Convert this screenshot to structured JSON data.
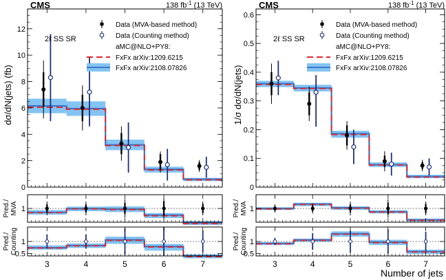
{
  "chart_data": [
    {
      "type": "step-with-errorbars",
      "experiment": "CMS",
      "lumi": "138 fb",
      "lumi_exp": "-1",
      "energy": "(13 TeV)",
      "region": "2ℓ SS SR",
      "ylabel": "dσ/dN(jets) (fb)",
      "ylim": [
        0,
        13.5
      ],
      "yticks": [
        "0",
        "2",
        "4",
        "6",
        "8",
        "10",
        "12"
      ],
      "ytick_values": [
        0,
        2,
        4,
        6,
        8,
        10,
        12
      ],
      "categories": [
        "3",
        "4",
        "5",
        "6",
        "7"
      ],
      "legend": {
        "mva": "Data (MVA-based method)",
        "counting": "Data (Counting method)",
        "generator": "aMC@NLO+PY8:",
        "fxfx1": "FxFx arXiv:1209.6215",
        "fxfx2": "FxFx arXiv:2108.07826"
      },
      "prediction_fxfx1": [
        6.05,
        5.9,
        3.15,
        1.3,
        0.55
      ],
      "prediction_fxfx2": [
        6.15,
        5.95,
        3.2,
        1.35,
        0.6
      ],
      "prediction_band": [
        [
          5.6,
          6.7
        ],
        [
          5.4,
          6.5
        ],
        [
          2.8,
          3.6
        ],
        [
          1.1,
          1.55
        ],
        [
          0.45,
          0.7
        ]
      ],
      "data_mva": {
        "values": [
          7.4,
          6.0,
          3.3,
          1.9,
          1.6
        ],
        "err_lo": [
          1.3,
          1.0,
          0.8,
          0.6,
          0.3
        ],
        "err_hi": [
          1.3,
          1.0,
          0.8,
          0.6,
          0.3
        ],
        "err2_lo": [
          2.2,
          1.7,
          1.3,
          0.8,
          0.45
        ],
        "err2_hi": [
          2.2,
          1.7,
          1.3,
          0.8,
          0.45
        ]
      },
      "data_counting": {
        "values": [
          8.3,
          7.2,
          3.0,
          1.7,
          1.5
        ],
        "err_lo": [
          3.3,
          2.6,
          1.9,
          1.2,
          0.8
        ],
        "err_hi": [
          3.3,
          2.6,
          1.9,
          1.2,
          0.8
        ]
      },
      "ratio_mva": {
        "ylabel": [
          "Pred./",
          "MVA"
        ],
        "ylim": [
          0.4,
          1.6
        ],
        "yticks": [
          "1"
        ],
        "ytick_values": [
          1.0
        ],
        "pred1": [
          0.82,
          0.98,
          0.95,
          0.68,
          0.34
        ],
        "pred2": [
          0.83,
          0.99,
          0.97,
          0.71,
          0.37
        ],
        "band": [
          [
            0.73,
            0.93
          ],
          [
            0.88,
            1.08
          ],
          [
            0.84,
            1.09
          ],
          [
            0.58,
            0.8
          ],
          [
            0.28,
            0.45
          ]
        ],
        "data": [
          1.0,
          1.0,
          1.0,
          1.0,
          1.0
        ],
        "err": [
          0.18,
          0.17,
          0.24,
          0.32,
          0.2
        ],
        "err2": [
          0.3,
          0.3,
          0.4,
          0.45,
          0.3
        ]
      },
      "ratio_counting": {
        "ylabel": [
          "Pred./",
          "Counting"
        ],
        "ylim": [
          0.4,
          1.6
        ],
        "yticks": [
          "0.5",
          "1"
        ],
        "ytick_values": [
          0.5,
          1.0
        ],
        "pred1": [
          0.73,
          0.82,
          1.05,
          0.77,
          0.37
        ],
        "pred2": [
          0.74,
          0.83,
          1.07,
          0.79,
          0.4
        ],
        "band": [
          [
            0.66,
            0.84
          ],
          [
            0.73,
            0.92
          ],
          [
            0.9,
            1.2
          ],
          [
            0.62,
            0.9
          ],
          [
            0.3,
            0.47
          ]
        ],
        "data": [
          1.0,
          1.0,
          1.0,
          1.0,
          1.0
        ],
        "err": [
          0.3,
          0.3,
          0.55,
          0.6,
          0.45
        ]
      }
    },
    {
      "type": "step-with-errorbars",
      "experiment": "CMS",
      "lumi": "138 fb",
      "lumi_exp": "-1",
      "energy": "(13 TeV)",
      "region": "2ℓ SS SR",
      "ylabel": "1/σ dσ/dN(jets)",
      "xlabel": "Number of jets",
      "ylim": [
        0,
        0.62
      ],
      "yticks": [
        "0",
        "0.1",
        "0.2",
        "0.3",
        "0.4",
        "0.5",
        "0.6"
      ],
      "ytick_values": [
        0,
        0.1,
        0.2,
        0.3,
        0.4,
        0.5,
        0.6
      ],
      "categories": [
        "3",
        "4",
        "5",
        "6",
        "7"
      ],
      "legend": {
        "mva": "Data (MVA-based method)",
        "counting": "Data (Counting method)",
        "generator": "aMC@NLO+PY8:",
        "fxfx1": "FxFx arXiv:1209.6215",
        "fxfx2": "FxFx arXiv:2108.07826"
      },
      "prediction_fxfx1": [
        0.357,
        0.343,
        0.183,
        0.077,
        0.035
      ],
      "prediction_fxfx2": [
        0.36,
        0.345,
        0.186,
        0.078,
        0.037
      ],
      "prediction_band": [
        [
          0.348,
          0.37
        ],
        [
          0.333,
          0.356
        ],
        [
          0.172,
          0.196
        ],
        [
          0.07,
          0.086
        ],
        [
          0.031,
          0.043
        ]
      ],
      "data_mva": {
        "values": [
          0.36,
          0.29,
          0.18,
          0.09,
          0.075
        ],
        "err_lo": [
          0.04,
          0.04,
          0.035,
          0.02,
          0.012
        ],
        "err_hi": [
          0.04,
          0.04,
          0.035,
          0.02,
          0.012
        ],
        "err2_lo": [
          0.07,
          0.06,
          0.05,
          0.035,
          0.02
        ],
        "err2_hi": [
          0.07,
          0.06,
          0.05,
          0.035,
          0.02
        ]
      },
      "data_counting": {
        "values": [
          0.38,
          0.33,
          0.14,
          0.08,
          0.07
        ],
        "err_lo": [
          0.06,
          0.12,
          0.06,
          0.04,
          0.03
        ],
        "err_hi": [
          0.06,
          0.06,
          0.06,
          0.04,
          0.03
        ]
      },
      "ratio_mva": {
        "ylabel": [
          "Pred./",
          "MVA"
        ],
        "ylim": [
          0.4,
          1.6
        ],
        "yticks": [
          "1"
        ],
        "ytick_values": [
          1.0
        ],
        "pred1": [
          0.98,
          1.17,
          1.01,
          0.84,
          0.48
        ],
        "pred2": [
          1.0,
          1.19,
          1.03,
          0.86,
          0.5
        ],
        "band": [
          [
            0.93,
            1.05
          ],
          [
            1.1,
            1.25
          ],
          [
            0.94,
            1.09
          ],
          [
            0.78,
            0.92
          ],
          [
            0.43,
            0.56
          ]
        ],
        "data": [
          1.0,
          1.0,
          1.0,
          1.0,
          1.0
        ],
        "err": [
          0.1,
          0.13,
          0.18,
          0.25,
          0.2
        ],
        "err2": [
          0.18,
          0.22,
          0.3,
          0.4,
          0.3
        ]
      },
      "ratio_counting": {
        "ylabel": [
          "Pred./",
          "Counting"
        ],
        "ylim": [
          0.4,
          1.6
        ],
        "yticks": [
          "0.5",
          "1"
        ],
        "ytick_values": [
          0.5,
          1.0
        ],
        "pred1": [
          0.9,
          1.05,
          1.3,
          0.95,
          0.56
        ],
        "pred2": [
          0.92,
          1.06,
          1.32,
          0.97,
          0.58
        ],
        "band": [
          [
            0.85,
            0.97
          ],
          [
            0.98,
            1.12
          ],
          [
            1.2,
            1.42
          ],
          [
            0.85,
            1.07
          ],
          [
            0.48,
            0.66
          ]
        ],
        "data": [
          1.0,
          1.0,
          1.0,
          1.0,
          1.0
        ],
        "err": [
          0.15,
          0.35,
          0.45,
          0.5,
          0.4
        ]
      }
    }
  ],
  "colors": {
    "band": "#84c4f2",
    "line_fxfx1": "#e4242d",
    "line_fxfx2": "#3a78c9",
    "data_mva": "#000000",
    "data_counting": "#1f2f7a",
    "dashed_ref": "#555555"
  }
}
